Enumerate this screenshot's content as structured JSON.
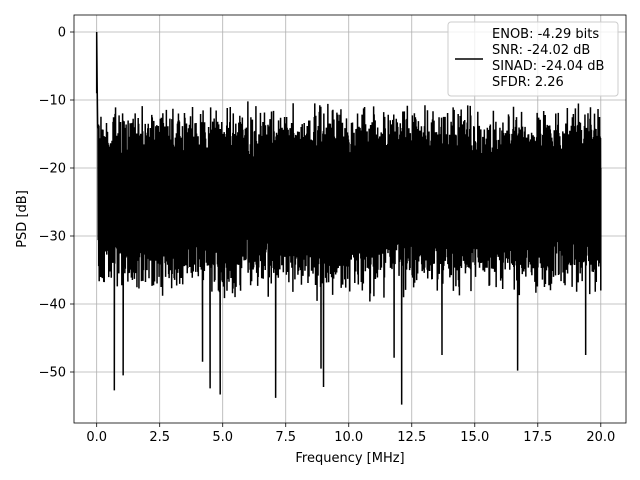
{
  "chart_data": {
    "type": "line",
    "title": "",
    "xlabel": "Frequency [MHz]",
    "ylabel": "PSD [dB]",
    "xlim": [
      -0.9,
      21.0
    ],
    "ylim": [
      -57.5,
      2.5
    ],
    "xticks": [
      0.0,
      2.5,
      5.0,
      7.5,
      10.0,
      12.5,
      15.0,
      17.5,
      20.0
    ],
    "xtick_labels": [
      "0.0",
      "2.5",
      "5.0",
      "7.5",
      "10.0",
      "12.5",
      "15.0",
      "17.5",
      "20.0"
    ],
    "yticks": [
      0,
      -10,
      -20,
      -30,
      -40,
      -50
    ],
    "ytick_labels": [
      "0",
      "−10",
      "−20",
      "−30",
      "−40",
      "−50"
    ],
    "grid": true,
    "legend_position": "top-right",
    "line_color": "#000000",
    "series": [
      {
        "name": "ENOB: -4.29 bits\nSNR: -24.02 dB\nSINAD: -24.04 dB\nSFDR: 2.26",
        "legend_lines": [
          "ENOB: -4.29 bits",
          "SNR: -24.02 dB",
          "SINAD: -24.04 dB",
          "SFDR: 2.26"
        ],
        "x_range": [
          0.0,
          20.0
        ],
        "peak": {
          "x": 0.0,
          "y": 0.0
        },
        "noise_floor_envelope": {
          "upper": -10.0,
          "typical_top": -15.0,
          "typical_bottom": -35.0,
          "lower": -40.0
        },
        "deep_nulls": [
          {
            "x": 0.7,
            "y": -52.7
          },
          {
            "x": 1.05,
            "y": -50.5
          },
          {
            "x": 4.2,
            "y": -48.5
          },
          {
            "x": 4.5,
            "y": -52.4
          },
          {
            "x": 4.9,
            "y": -53.3
          },
          {
            "x": 7.1,
            "y": -53.8
          },
          {
            "x": 8.9,
            "y": -49.5
          },
          {
            "x": 9.0,
            "y": -52.2
          },
          {
            "x": 11.8,
            "y": -47.9
          },
          {
            "x": 12.1,
            "y": -54.8
          },
          {
            "x": 13.7,
            "y": -47.5
          },
          {
            "x": 16.7,
            "y": -49.8
          },
          {
            "x": 19.4,
            "y": -47.5
          }
        ]
      }
    ]
  }
}
